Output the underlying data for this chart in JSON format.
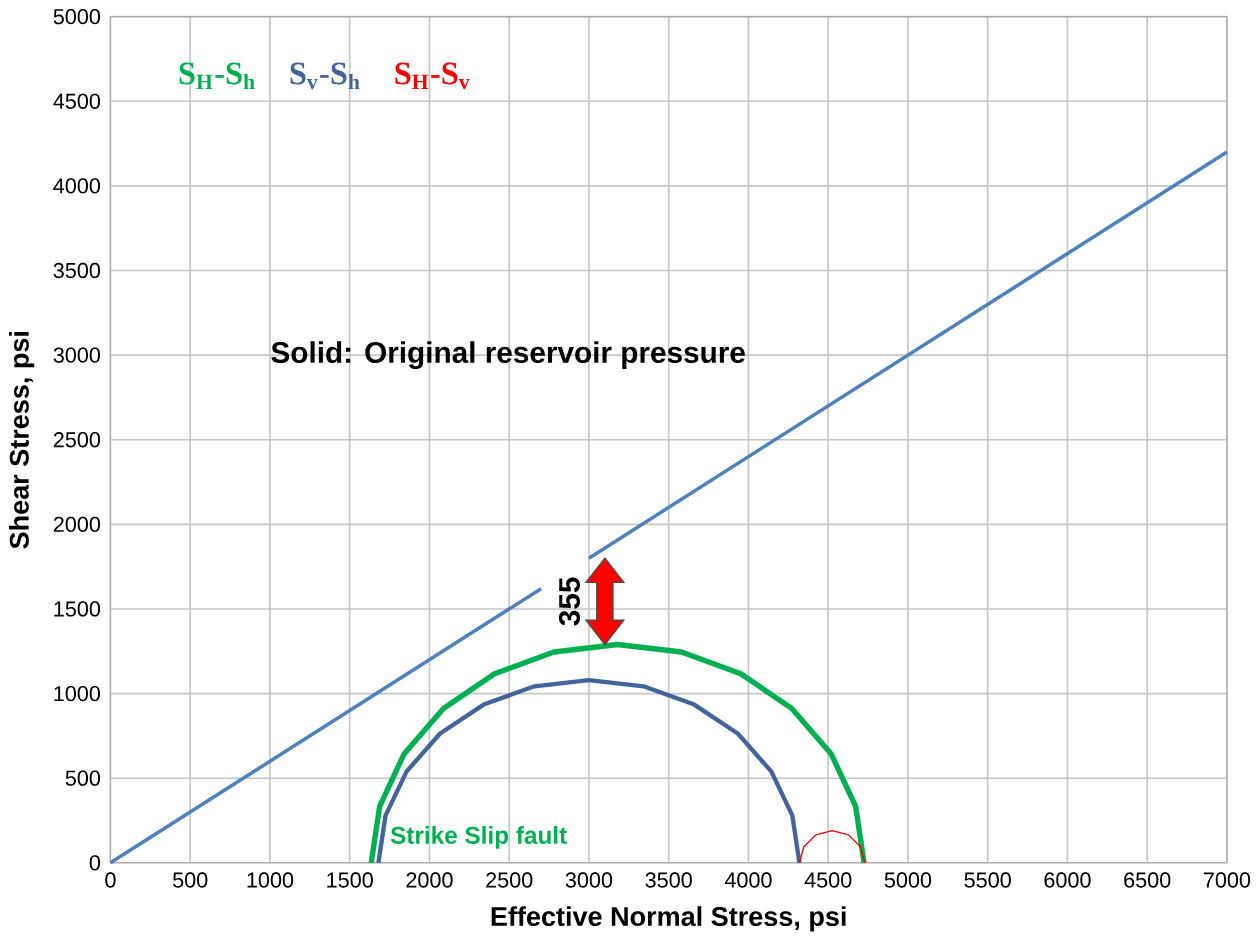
{
  "chart_data": {
    "type": "line",
    "xlabel": "Effective Normal Stress, psi",
    "ylabel": "Shear Stress, psi",
    "xlim": [
      0,
      7000
    ],
    "ylim": [
      0,
      5000
    ],
    "xticks": [
      0,
      500,
      1000,
      1500,
      2000,
      2500,
      3000,
      3500,
      4000,
      4500,
      5000,
      5500,
      6000,
      6500,
      7000
    ],
    "yticks": [
      0,
      500,
      1000,
      1500,
      2000,
      2500,
      3000,
      3500,
      4000,
      4500,
      5000
    ],
    "grid": true,
    "legend": "top left",
    "marker": "none",
    "line_style": "solid",
    "series": [
      {
        "color": "#4f81bd",
        "x": [
          0,
          2700,
          2850,
          3000,
          7000
        ],
        "values": [
          0,
          1620,
          null,
          1800,
          4200
        ]
      },
      {
        "name": "S$_{H}$-S$_{h}$",
        "color": "#00b050",
        "x": [
          1635,
          1688,
          1842,
          2088,
          2408,
          2780,
          3180,
          3580,
          3952,
          4272,
          4518,
          4672,
          4725
        ],
        "values": [
          0,
          334,
          645,
          912,
          1117,
          1246,
          1290,
          1246,
          1117,
          912,
          645,
          334,
          0
        ]
      },
      {
        "name": "S$_{v}$-S$_{h}$",
        "color": "#41649a",
        "x": [
          1680,
          1725,
          1857,
          2067,
          2340,
          2658,
          3000,
          3342,
          3660,
          3933,
          4143,
          4275,
          4320
        ],
        "values": [
          0,
          280,
          540,
          764,
          935,
          1043,
          1080,
          1043,
          935,
          764,
          540,
          280,
          0
        ]
      },
      {
        "name": "S$_{H}$-S$_{v}$",
        "color": "#ff0000",
        "x": [
          4320,
          4347,
          4423,
          4525,
          4627,
          4703,
          4730
        ],
        "values": [
          0,
          95,
          165,
          190,
          165,
          95,
          0
        ]
      }
    ],
    "annotations": [
      "Solid: Original reservoir pressure",
      "Strike Slip fault",
      {
        "text": "355",
        "x": 3100,
        "y": 1545
      }
    ]
  }
}
